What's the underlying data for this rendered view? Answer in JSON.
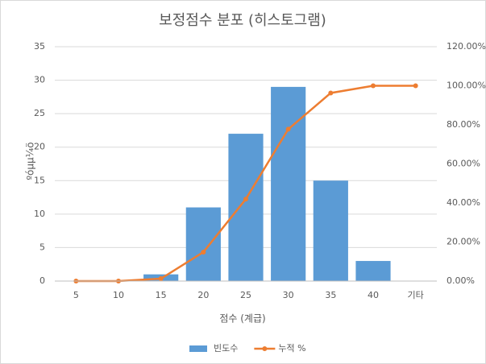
{
  "chart_data": {
    "type": "combo",
    "title": "보정점수 분포 (히스토그램)",
    "x_label": "점수 (계급)",
    "y_label": "ºóµµ¼ö",
    "categories": [
      "5",
      "10",
      "15",
      "20",
      "25",
      "30",
      "35",
      "40",
      "기타"
    ],
    "series": [
      {
        "name": "빈도수",
        "type": "bar",
        "color": "#5b9bd5",
        "values": [
          0,
          0,
          1,
          11,
          22,
          29,
          15,
          3,
          0
        ]
      },
      {
        "name": "누적 %",
        "type": "line",
        "axis": "y2",
        "color": "#ed7d31",
        "values": [
          0,
          0,
          1.23,
          14.81,
          41.98,
          77.78,
          96.3,
          100,
          100
        ]
      }
    ],
    "ylim": [
      0,
      35
    ],
    "yticks": [
      0,
      5,
      10,
      15,
      20,
      25,
      30,
      35
    ],
    "y2lim": [
      0,
      120
    ],
    "y2ticks": [
      {
        "value": 0,
        "label": "0.00%"
      },
      {
        "value": 20,
        "label": "20.00%"
      },
      {
        "value": 40,
        "label": "40.00%"
      },
      {
        "value": 60,
        "label": "60.00%"
      },
      {
        "value": 80,
        "label": "80.00%"
      },
      {
        "value": 100,
        "label": "100.00%"
      },
      {
        "value": 120,
        "label": "120.00%"
      }
    ],
    "grid": true,
    "legend": "bottom"
  }
}
